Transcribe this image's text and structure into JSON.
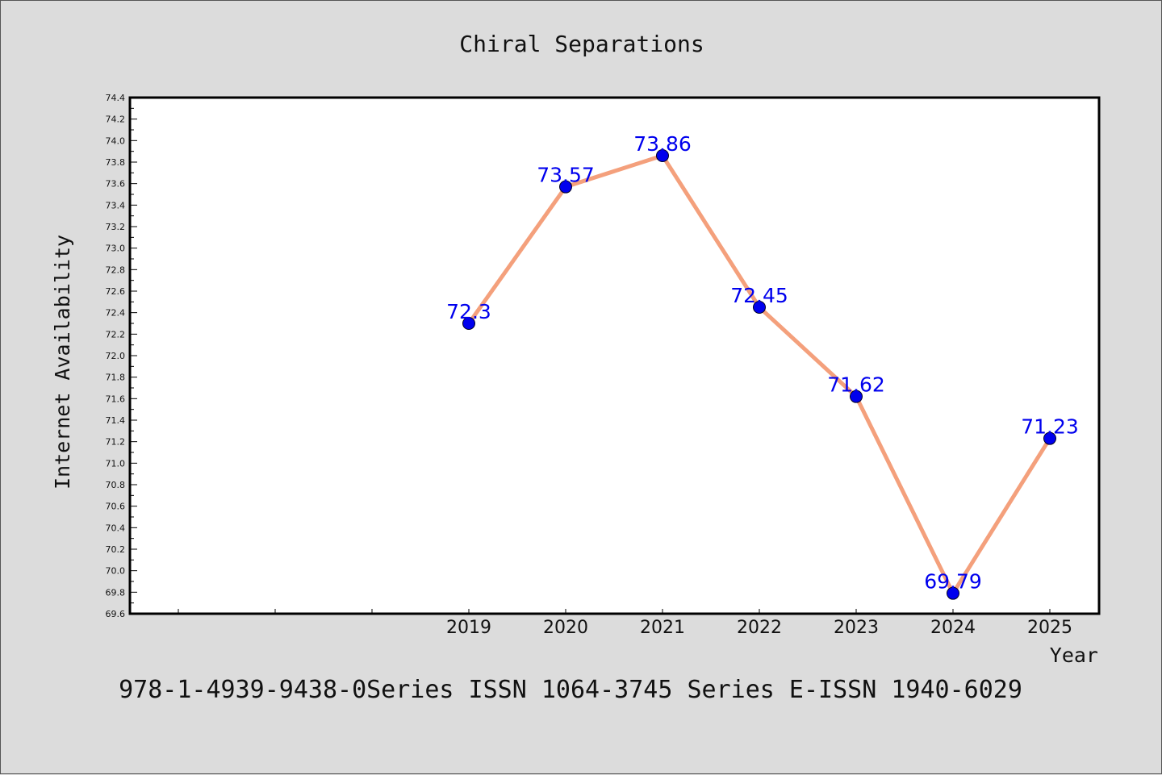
{
  "chart_data": {
    "type": "line",
    "title": "Chiral Separations",
    "xlabel": "Year",
    "ylabel": "Internet Availability",
    "x": [
      "2019",
      "2020",
      "2021",
      "2022",
      "2023",
      "2024",
      "2025"
    ],
    "series": [
      {
        "values": [
          72.3,
          73.57,
          73.86,
          72.45,
          71.62,
          69.79,
          71.23
        ],
        "labels": [
          "72.3",
          "73.57",
          "73.86",
          "72.45",
          "71.62",
          "69.79",
          "71.23"
        ]
      }
    ],
    "ylim": [
      69.6,
      74.4
    ],
    "yticks": [
      "69.6",
      "69.8",
      "70.0",
      "70.2",
      "70.4",
      "70.6",
      "70.8",
      "71.0",
      "71.2",
      "71.4",
      "71.6",
      "71.8",
      "72.0",
      "72.2",
      "72.4",
      "72.6",
      "72.8",
      "73.0",
      "73.2",
      "73.4",
      "73.6",
      "73.8",
      "74.0",
      "74.2",
      "74.4"
    ],
    "grid": false,
    "line_color": "#f4a07c",
    "marker_color": "#0000ee",
    "label_color": "#0000ee"
  },
  "footer": "978-1-4939-9438-0Series ISSN 1064-3745 Series E-ISSN 1940-6029"
}
